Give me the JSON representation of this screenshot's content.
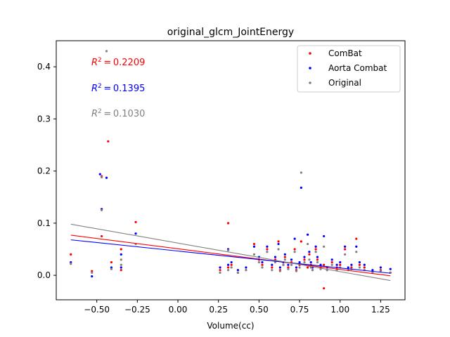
{
  "chart_data": {
    "type": "scatter",
    "title": "original_glcm_JointEnergy",
    "xlabel": "Volume(cc)",
    "ylabel": "",
    "xlim": [
      -0.75,
      1.4
    ],
    "ylim": [
      -0.047,
      0.45
    ],
    "xticks": [
      -0.5,
      -0.25,
      0.0,
      0.25,
      0.5,
      0.75,
      1.0,
      1.25
    ],
    "xtick_labels": [
      "−0.50",
      "−0.25",
      "0.00",
      "0.25",
      "0.50",
      "0.75",
      "1.00",
      "1.25"
    ],
    "yticks": [
      0.0,
      0.1,
      0.2,
      0.3,
      0.4
    ],
    "ytick_labels": [
      "0.0",
      "0.1",
      "0.2",
      "0.3",
      "0.4"
    ],
    "grid": false,
    "legend_position": "top-right",
    "series": [
      {
        "name": "ComBat",
        "color": "#ff0000",
        "r2_label": "0.2209",
        "fit": [
          [
            -0.66,
            0.077
          ],
          [
            1.31,
            -0.001
          ]
        ],
        "x": [
          -0.66,
          -0.53,
          -0.47,
          -0.47,
          -0.43,
          -0.41,
          -0.35,
          -0.35,
          -0.26,
          0.26,
          0.31,
          0.31,
          0.33,
          0.37,
          0.42,
          0.47,
          0.5,
          0.52,
          0.55,
          0.58,
          0.6,
          0.62,
          0.63,
          0.65,
          0.66,
          0.68,
          0.7,
          0.72,
          0.73,
          0.75,
          0.76,
          0.78,
          0.8,
          0.81,
          0.82,
          0.83,
          0.85,
          0.86,
          0.88,
          0.9,
          0.9,
          0.92,
          0.95,
          0.98,
          1.0,
          1.03,
          1.05,
          1.07,
          1.1,
          1.12,
          1.15,
          1.2,
          1.25,
          1.31
        ],
        "y": [
          0.04,
          0.008,
          0.19,
          0.075,
          0.257,
          0.025,
          0.05,
          0.01,
          0.102,
          0.01,
          0.1,
          0.015,
          0.02,
          0.005,
          0.01,
          0.06,
          0.03,
          0.02,
          0.05,
          0.015,
          0.03,
          0.065,
          0.01,
          0.02,
          0.035,
          0.015,
          0.025,
          0.05,
          0.01,
          0.02,
          0.065,
          0.03,
          0.015,
          0.04,
          0.02,
          0.01,
          0.05,
          0.03,
          0.015,
          -0.025,
          0.02,
          0.01,
          0.025,
          0.015,
          0.02,
          0.05,
          0.01,
          0.015,
          0.07,
          0.02,
          0.015,
          0.005,
          0.01,
          0.005
        ]
      },
      {
        "name": "Aorta Combat",
        "color": "#0000ff",
        "r2_label": "0.1395",
        "fit": [
          [
            -0.66,
            0.068
          ],
          [
            1.31,
            0.004
          ]
        ],
        "x": [
          -0.66,
          -0.53,
          -0.48,
          -0.47,
          -0.44,
          -0.41,
          -0.35,
          -0.35,
          -0.26,
          0.26,
          0.31,
          0.31,
          0.33,
          0.37,
          0.42,
          0.47,
          0.5,
          0.52,
          0.55,
          0.58,
          0.6,
          0.62,
          0.63,
          0.65,
          0.66,
          0.68,
          0.7,
          0.72,
          0.73,
          0.75,
          0.76,
          0.78,
          0.8,
          0.81,
          0.82,
          0.83,
          0.85,
          0.86,
          0.88,
          0.9,
          0.92,
          0.95,
          0.98,
          1.0,
          1.03,
          1.05,
          1.07,
          1.1,
          1.12,
          1.15,
          1.2,
          1.25,
          1.31
        ],
        "y": [
          0.025,
          -0.002,
          0.194,
          0.127,
          0.187,
          0.015,
          0.04,
          0.015,
          0.08,
          0.015,
          0.05,
          0.02,
          0.025,
          0.01,
          0.015,
          0.055,
          0.035,
          0.025,
          0.055,
          0.02,
          0.035,
          0.06,
          0.015,
          0.025,
          0.04,
          0.02,
          0.03,
          0.07,
          0.015,
          0.025,
          0.168,
          0.035,
          0.078,
          0.045,
          0.025,
          0.015,
          0.055,
          0.035,
          0.02,
          0.075,
          0.015,
          0.03,
          0.02,
          0.025,
          0.055,
          0.015,
          0.02,
          0.055,
          0.025,
          0.02,
          0.01,
          0.015,
          0.012
        ]
      },
      {
        "name": "Original",
        "color": "#808080",
        "r2_label": "0.1030",
        "fit": [
          [
            -0.66,
            0.098
          ],
          [
            1.31,
            -0.01
          ]
        ],
        "x": [
          -0.66,
          -0.53,
          -0.47,
          -0.47,
          -0.44,
          -0.41,
          -0.35,
          -0.35,
          -0.26,
          0.26,
          0.31,
          0.31,
          0.33,
          0.37,
          0.42,
          0.47,
          0.5,
          0.52,
          0.55,
          0.58,
          0.6,
          0.62,
          0.63,
          0.65,
          0.66,
          0.68,
          0.7,
          0.72,
          0.73,
          0.75,
          0.76,
          0.78,
          0.8,
          0.81,
          0.82,
          0.83,
          0.85,
          0.86,
          0.88,
          0.9,
          0.92,
          0.95,
          0.98,
          1.0,
          1.03,
          1.05,
          1.07,
          1.1,
          1.12,
          1.15,
          1.2,
          1.25,
          1.31
        ],
        "y": [
          0.022,
          0.005,
          0.188,
          0.125,
          0.43,
          0.012,
          0.03,
          0.02,
          0.06,
          0.005,
          0.048,
          0.01,
          0.015,
          0.005,
          0.01,
          0.04,
          0.025,
          0.015,
          0.045,
          0.01,
          0.025,
          0.05,
          0.008,
          0.02,
          0.03,
          0.012,
          0.02,
          0.045,
          0.008,
          0.015,
          0.197,
          0.025,
          0.06,
          0.03,
          0.015,
          0.01,
          0.045,
          0.025,
          0.012,
          0.055,
          0.01,
          0.02,
          0.01,
          0.015,
          0.04,
          0.01,
          0.012,
          0.045,
          0.015,
          0.01,
          0.005,
          0.008,
          0.005
        ]
      }
    ]
  }
}
